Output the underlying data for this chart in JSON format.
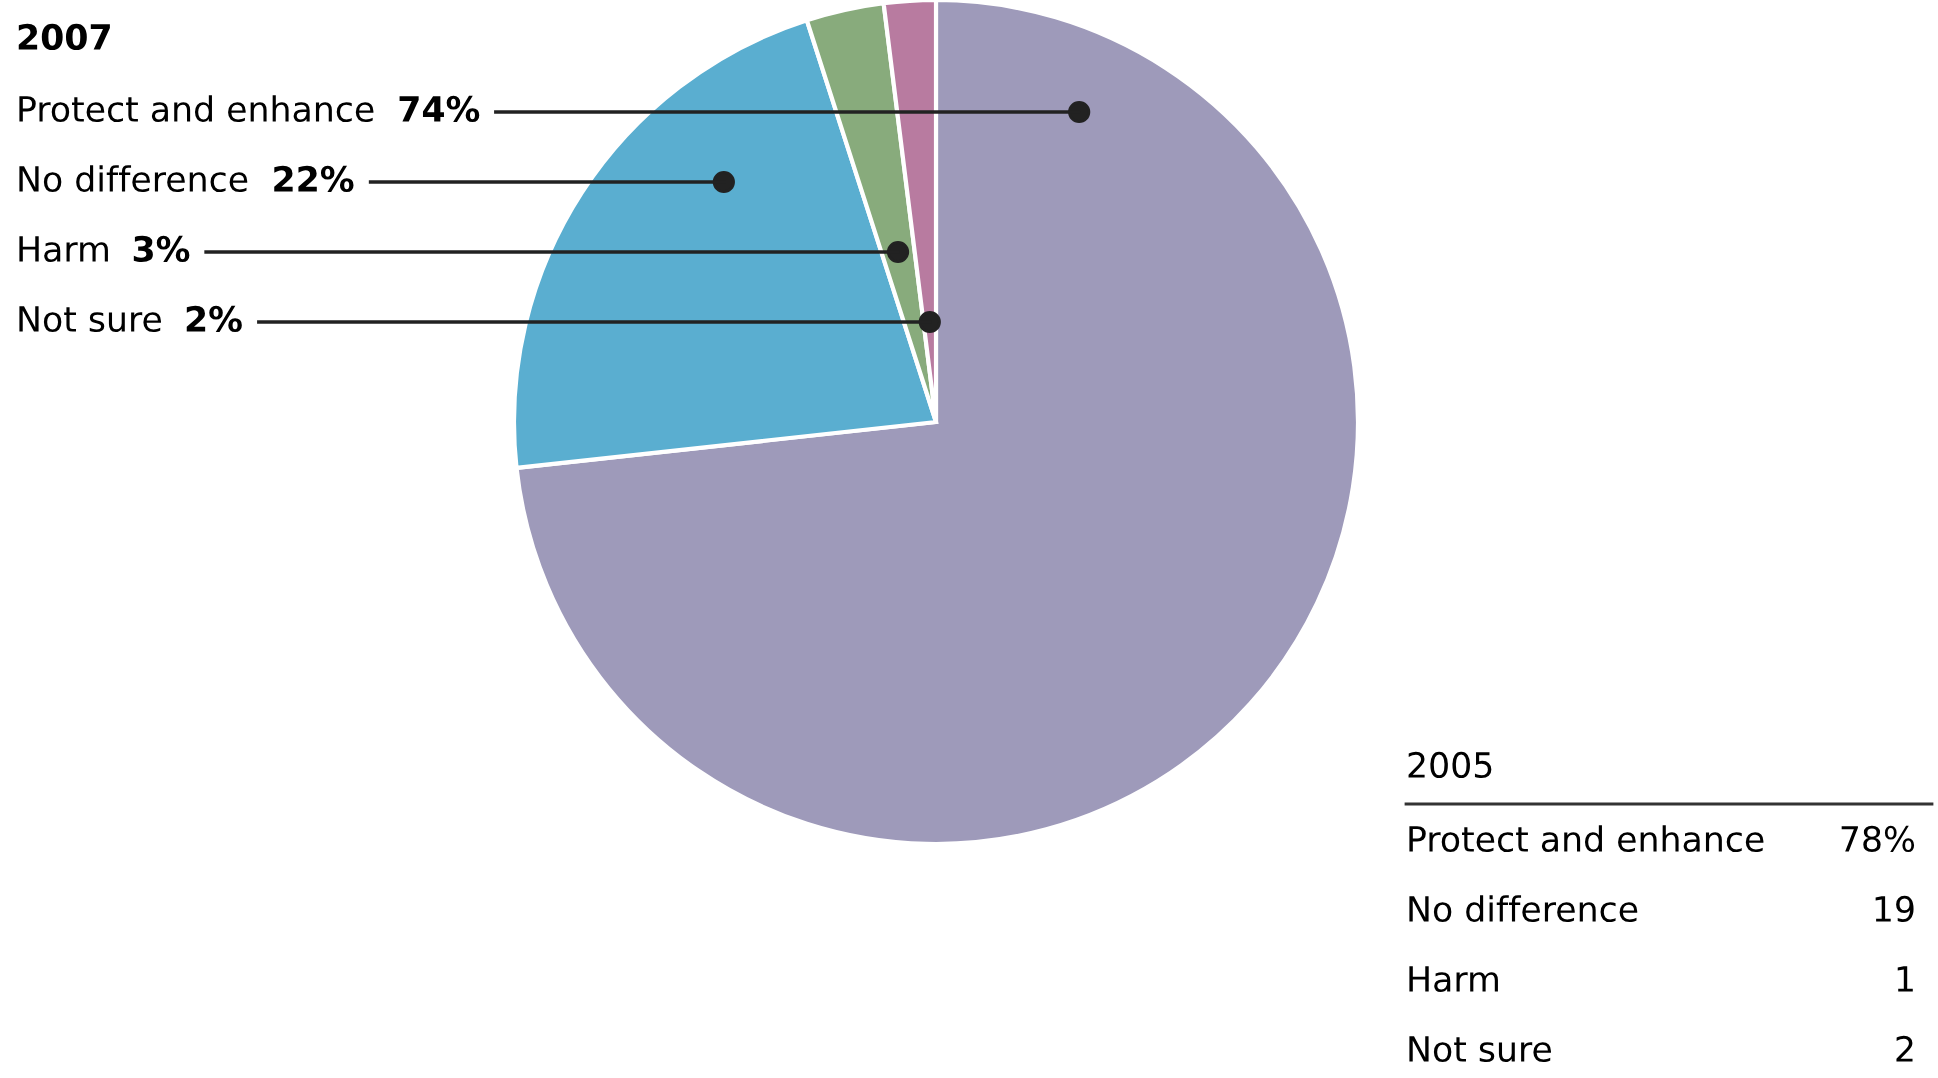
{
  "chart_data": [
    {
      "type": "pie",
      "title": "2007",
      "categories": [
        "Protect and enhance",
        "No difference",
        "Harm",
        "Not sure"
      ],
      "values": [
        74,
        22,
        3,
        2
      ],
      "value_labels": [
        "74%",
        "22%",
        "3%",
        "2%"
      ],
      "colors": [
        "#9e9aba",
        "#5aaed0",
        "#88ab7c",
        "#b87ba0"
      ]
    },
    {
      "type": "other",
      "title": "2005",
      "categories": [
        "Protect and enhance",
        "No difference",
        "Harm",
        "Not sure"
      ],
      "value_labels": [
        "78%",
        "19",
        "1",
        "2"
      ]
    }
  ]
}
